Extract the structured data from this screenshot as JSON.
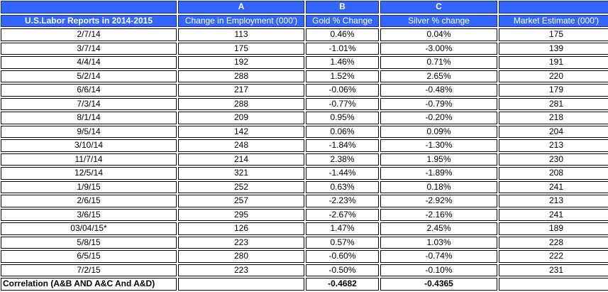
{
  "header": {
    "letters": [
      "",
      "A",
      "B",
      "C",
      ""
    ],
    "columns": [
      "U.S.Labor Reports in 2014-2015",
      "Change in Employment (000')",
      "Gold % Change",
      "Silver % change",
      "Market  Estimate (000')"
    ]
  },
  "colors": {
    "header_bg": "#3366ff",
    "header_text": "#ffffff"
  },
  "rows": [
    [
      "2/7/14",
      "113",
      "0.46%",
      "0.04%",
      "175"
    ],
    [
      "3/7/14",
      "175",
      "-1.01%",
      "-3.00%",
      "139"
    ],
    [
      "4/4/14",
      "192",
      "1.46%",
      "0.71%",
      "191"
    ],
    [
      "5/2/14",
      "288",
      "1.52%",
      "2.65%",
      "220"
    ],
    [
      "6/6/14",
      "217",
      "-0.06%",
      "-0.48%",
      "179"
    ],
    [
      "7/3/14",
      "288",
      "-0.77%",
      "-0.79%",
      "281"
    ],
    [
      "8/1/14",
      "209",
      "0.95%",
      "-0.20%",
      "218"
    ],
    [
      "9/5/14",
      "142",
      "0.06%",
      "0.09%",
      "204"
    ],
    [
      "3/10/14",
      "248",
      "-1.84%",
      "-1.30%",
      "213"
    ],
    [
      "11/7/14",
      "214",
      "2.38%",
      "1.95%",
      "230"
    ],
    [
      "12/5/14",
      "321",
      "-1.44%",
      "-1.89%",
      "208"
    ],
    [
      "1/9/15",
      "252",
      "0.63%",
      "0.18%",
      "241"
    ],
    [
      "2/6/15",
      "257",
      "-2.23%",
      "-2.92%",
      "213"
    ],
    [
      "3/6/15",
      "295",
      "-2.67%",
      "-2.16%",
      "241"
    ],
    [
      "03/04/15*",
      "126",
      "1.47%",
      "2.45%",
      "189"
    ],
    [
      "5/8/15",
      "223",
      "0.57%",
      "1.03%",
      "228"
    ],
    [
      "6/5/15",
      "280",
      "-0.60%",
      "-0.74%",
      "222"
    ],
    [
      "7/2/15",
      "223",
      "-0.50%",
      "-0.10%",
      "231"
    ]
  ],
  "correlation": {
    "label": "Correlation (A&B AND A&C And A&D)",
    "values": [
      "",
      "-0.4682",
      "-0.4365",
      ""
    ]
  }
}
